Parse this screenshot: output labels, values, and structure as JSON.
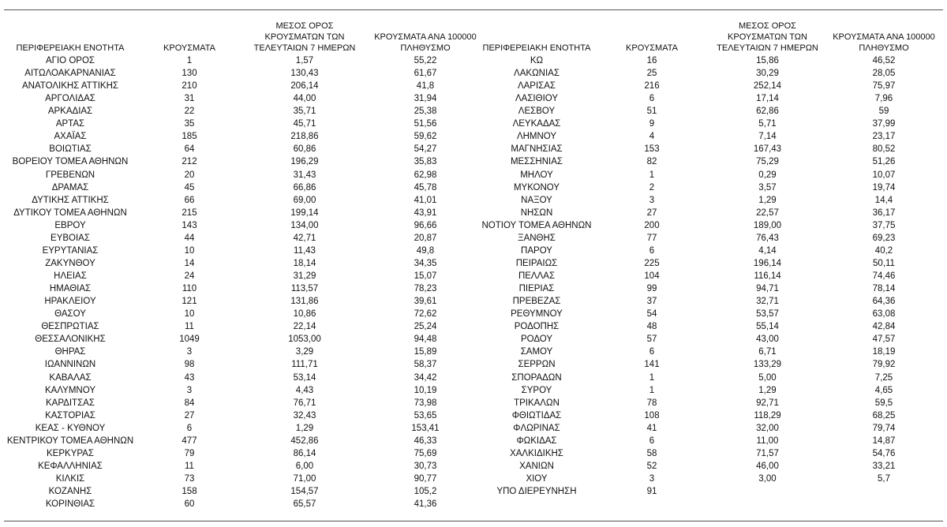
{
  "headers": [
    "ΠΕΡΙΦΕΡΕΙΑΚΗ ΕΝΟΤΗΤΑ",
    "ΚΡΟΥΣΜΑΤΑ",
    "ΜΕΣΟΣ ΟΡΟΣ ΚΡΟΥΣΜΑΤΩΝ ΤΩΝ ΤΕΛΕΥΤΑΙΩΝ 7 ΗΜΕΡΩΝ",
    "ΚΡΟΥΣΜΑΤΑ ΑΝΑ 100000 ΠΛΗΘΥΣΜΟ"
  ],
  "tables": [
    {
      "rows": [
        [
          "ΑΓΙΟ ΟΡΟΣ",
          "1",
          "1,57",
          "55,22"
        ],
        [
          "ΑΙΤΩΛΟΑΚΑΡΝΑΝΙΑΣ",
          "130",
          "130,43",
          "61,67"
        ],
        [
          "ΑΝΑΤΟΛΙΚΗΣ ΑΤΤΙΚΗΣ",
          "210",
          "206,14",
          "41,8"
        ],
        [
          "ΑΡΓΟΛΙΔΑΣ",
          "31",
          "44,00",
          "31,94"
        ],
        [
          "ΑΡΚΑΔΙΑΣ",
          "22",
          "35,71",
          "25,38"
        ],
        [
          "ΑΡΤΑΣ",
          "35",
          "45,71",
          "51,56"
        ],
        [
          "ΑΧΑΪΑΣ",
          "185",
          "218,86",
          "59,62"
        ],
        [
          "ΒΟΙΩΤΙΑΣ",
          "64",
          "60,86",
          "54,27"
        ],
        [
          "ΒΟΡΕΙΟΥ ΤΟΜΕΑ ΑΘΗΝΩΝ",
          "212",
          "196,29",
          "35,83"
        ],
        [
          "ΓΡΕΒΕΝΩΝ",
          "20",
          "31,43",
          "62,98"
        ],
        [
          "ΔΡΑΜΑΣ",
          "45",
          "66,86",
          "45,78"
        ],
        [
          "ΔΥΤΙΚΗΣ ΑΤΤΙΚΗΣ",
          "66",
          "69,00",
          "41,01"
        ],
        [
          "ΔΥΤΙΚΟΥ ΤΟΜΕΑ ΑΘΗΝΩΝ",
          "215",
          "199,14",
          "43,91"
        ],
        [
          "ΕΒΡΟΥ",
          "143",
          "134,00",
          "96,66"
        ],
        [
          "ΕΥΒΟΙΑΣ",
          "44",
          "42,71",
          "20,87"
        ],
        [
          "ΕΥΡΥΤΑΝΙΑΣ",
          "10",
          "11,43",
          "49,8"
        ],
        [
          "ΖΑΚΥΝΘΟΥ",
          "14",
          "18,14",
          "34,35"
        ],
        [
          "ΗΛΕΙΑΣ",
          "24",
          "31,29",
          "15,07"
        ],
        [
          "ΗΜΑΘΙΑΣ",
          "110",
          "113,57",
          "78,23"
        ],
        [
          "ΗΡΑΚΛΕΙΟΥ",
          "121",
          "131,86",
          "39,61"
        ],
        [
          "ΘΑΣΟΥ",
          "10",
          "10,86",
          "72,62"
        ],
        [
          "ΘΕΣΠΡΩΤΙΑΣ",
          "11",
          "22,14",
          "25,24"
        ],
        [
          "ΘΕΣΣΑΛΟΝΙΚΗΣ",
          "1049",
          "1053,00",
          "94,48"
        ],
        [
          "ΘΗΡΑΣ",
          "3",
          "3,29",
          "15,89"
        ],
        [
          "ΙΩΑΝΝΙΝΩΝ",
          "98",
          "111,71",
          "58,37"
        ],
        [
          "ΚΑΒΑΛΑΣ",
          "43",
          "53,14",
          "34,42"
        ],
        [
          "ΚΑΛΥΜΝΟΥ",
          "3",
          "4,43",
          "10,19"
        ],
        [
          "ΚΑΡΔΙΤΣΑΣ",
          "84",
          "76,71",
          "73,98"
        ],
        [
          "ΚΑΣΤΟΡΙΑΣ",
          "27",
          "32,43",
          "53,65"
        ],
        [
          "ΚΕΑΣ - ΚΥΘΝΟΥ",
          "6",
          "1,29",
          "153,41"
        ],
        [
          "ΚΕΝΤΡΙΚΟΥ ΤΟΜΕΑ ΑΘΗΝΩΝ",
          "477",
          "452,86",
          "46,33"
        ],
        [
          "ΚΕΡΚΥΡΑΣ",
          "79",
          "86,14",
          "75,69"
        ],
        [
          "ΚΕΦΑΛΛΗΝΙΑΣ",
          "11",
          "6,00",
          "30,73"
        ],
        [
          "ΚΙΛΚΙΣ",
          "73",
          "71,00",
          "90,77"
        ],
        [
          "ΚΟΖΑΝΗΣ",
          "158",
          "154,57",
          "105,2"
        ],
        [
          "ΚΟΡΙΝΘΙΑΣ",
          "60",
          "65,57",
          "41,36"
        ]
      ]
    },
    {
      "rows": [
        [
          "ΚΩ",
          "16",
          "15,86",
          "46,52"
        ],
        [
          "ΛΑΚΩΝΙΑΣ",
          "25",
          "30,29",
          "28,05"
        ],
        [
          "ΛΑΡΙΣΑΣ",
          "216",
          "252,14",
          "75,97"
        ],
        [
          "ΛΑΣΙΘΙΟΥ",
          "6",
          "17,14",
          "7,96"
        ],
        [
          "ΛΕΣΒΟΥ",
          "51",
          "62,86",
          "59"
        ],
        [
          "ΛΕΥΚΑΔΑΣ",
          "9",
          "5,71",
          "37,99"
        ],
        [
          "ΛΗΜΝΟΥ",
          "4",
          "7,14",
          "23,17"
        ],
        [
          "ΜΑΓΝΗΣΙΑΣ",
          "153",
          "167,43",
          "80,52"
        ],
        [
          "ΜΕΣΣΗΝΙΑΣ",
          "82",
          "75,29",
          "51,26"
        ],
        [
          "ΜΗΛΟΥ",
          "1",
          "0,29",
          "10,07"
        ],
        [
          "ΜΥΚΟΝΟΥ",
          "2",
          "3,57",
          "19,74"
        ],
        [
          "ΝΑΞΟΥ",
          "3",
          "1,29",
          "14,4"
        ],
        [
          "ΝΗΣΩΝ",
          "27",
          "22,57",
          "36,17"
        ],
        [
          "ΝΟΤΙΟΥ ΤΟΜΕΑ ΑΘΗΝΩΝ",
          "200",
          "189,00",
          "37,75"
        ],
        [
          "ΞΑΝΘΗΣ",
          "77",
          "76,43",
          "69,23"
        ],
        [
          "ΠΑΡΟΥ",
          "6",
          "4,14",
          "40,2"
        ],
        [
          "ΠΕΙΡΑΙΩΣ",
          "225",
          "196,14",
          "50,11"
        ],
        [
          "ΠΕΛΛΑΣ",
          "104",
          "116,14",
          "74,46"
        ],
        [
          "ΠΙΕΡΙΑΣ",
          "99",
          "94,71",
          "78,14"
        ],
        [
          "ΠΡΕΒΕΖΑΣ",
          "37",
          "32,71",
          "64,36"
        ],
        [
          "ΡΕΘΥΜΝΟΥ",
          "54",
          "53,57",
          "63,08"
        ],
        [
          "ΡΟΔΟΠΗΣ",
          "48",
          "55,14",
          "42,84"
        ],
        [
          "ΡΟΔΟΥ",
          "57",
          "43,00",
          "47,57"
        ],
        [
          "ΣΑΜΟΥ",
          "6",
          "6,71",
          "18,19"
        ],
        [
          "ΣΕΡΡΩΝ",
          "141",
          "133,29",
          "79,92"
        ],
        [
          "ΣΠΟΡΑΔΩΝ",
          "1",
          "5,00",
          "7,25"
        ],
        [
          "ΣΥΡΟΥ",
          "1",
          "1,29",
          "4,65"
        ],
        [
          "ΤΡΙΚΑΛΩΝ",
          "78",
          "92,71",
          "59,5"
        ],
        [
          "ΦΘΙΩΤΙΔΑΣ",
          "108",
          "118,29",
          "68,25"
        ],
        [
          "ΦΛΩΡΙΝΑΣ",
          "41",
          "32,00",
          "79,74"
        ],
        [
          "ΦΩΚΙΔΑΣ",
          "6",
          "11,00",
          "14,87"
        ],
        [
          "ΧΑΛΚΙΔΙΚΗΣ",
          "58",
          "71,57",
          "54,76"
        ],
        [
          "ΧΑΝΙΩΝ",
          "52",
          "46,00",
          "33,21"
        ],
        [
          "ΧΙΟΥ",
          "3",
          "3,00",
          "5,7"
        ],
        [
          "ΥΠΟ ΔΙΕΡΕΥΝΗΣΗ",
          "91"
        ]
      ]
    }
  ]
}
